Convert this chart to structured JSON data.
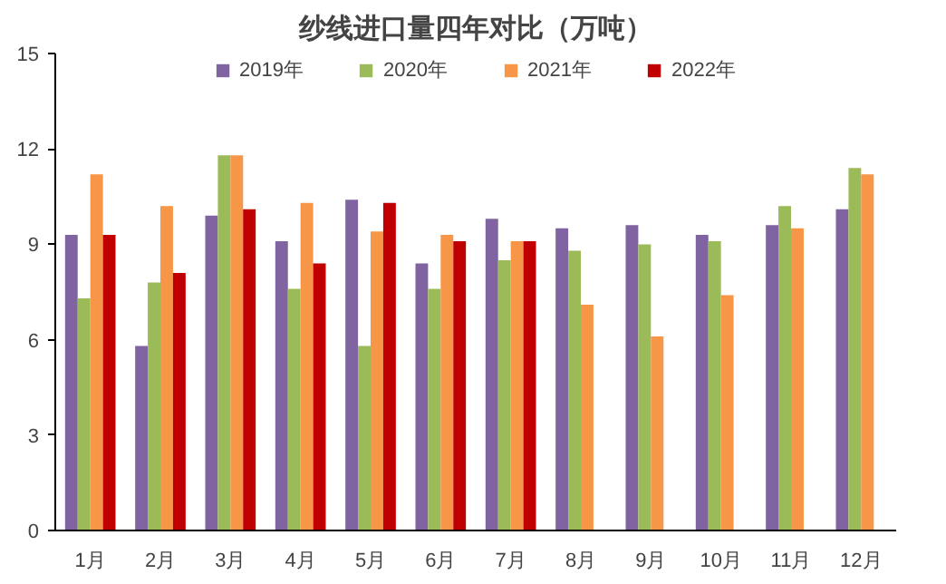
{
  "chart_data": {
    "type": "bar",
    "title": "纱线进口量四年对比（万吨）",
    "categories": [
      "1月",
      "2月",
      "3月",
      "4月",
      "5月",
      "6月",
      "7月",
      "8月",
      "9月",
      "10月",
      "11月",
      "12月"
    ],
    "series": [
      {
        "name": "2019年",
        "color": "#8064a2",
        "values": [
          9.3,
          5.8,
          9.9,
          9.1,
          10.4,
          8.4,
          9.8,
          9.5,
          9.6,
          9.3,
          9.6,
          10.1
        ]
      },
      {
        "name": "2020年",
        "color": "#9bbb59",
        "values": [
          7.3,
          7.8,
          11.8,
          7.6,
          5.8,
          7.6,
          8.5,
          8.8,
          9.0,
          9.1,
          10.2,
          11.4
        ]
      },
      {
        "name": "2021年",
        "color": "#f79646",
        "values": [
          11.2,
          10.2,
          11.8,
          10.3,
          9.4,
          9.3,
          9.1,
          7.1,
          6.1,
          7.4,
          9.5,
          11.2
        ]
      },
      {
        "name": "2022年",
        "color": "#c00000",
        "values": [
          9.3,
          8.1,
          10.1,
          8.4,
          10.3,
          9.1,
          9.1,
          null,
          null,
          null,
          null,
          null
        ]
      }
    ],
    "ylim": [
      0,
      15
    ],
    "yticks": [
      0,
      3,
      6,
      9,
      12,
      15
    ],
    "grid": false,
    "legend": "top"
  }
}
